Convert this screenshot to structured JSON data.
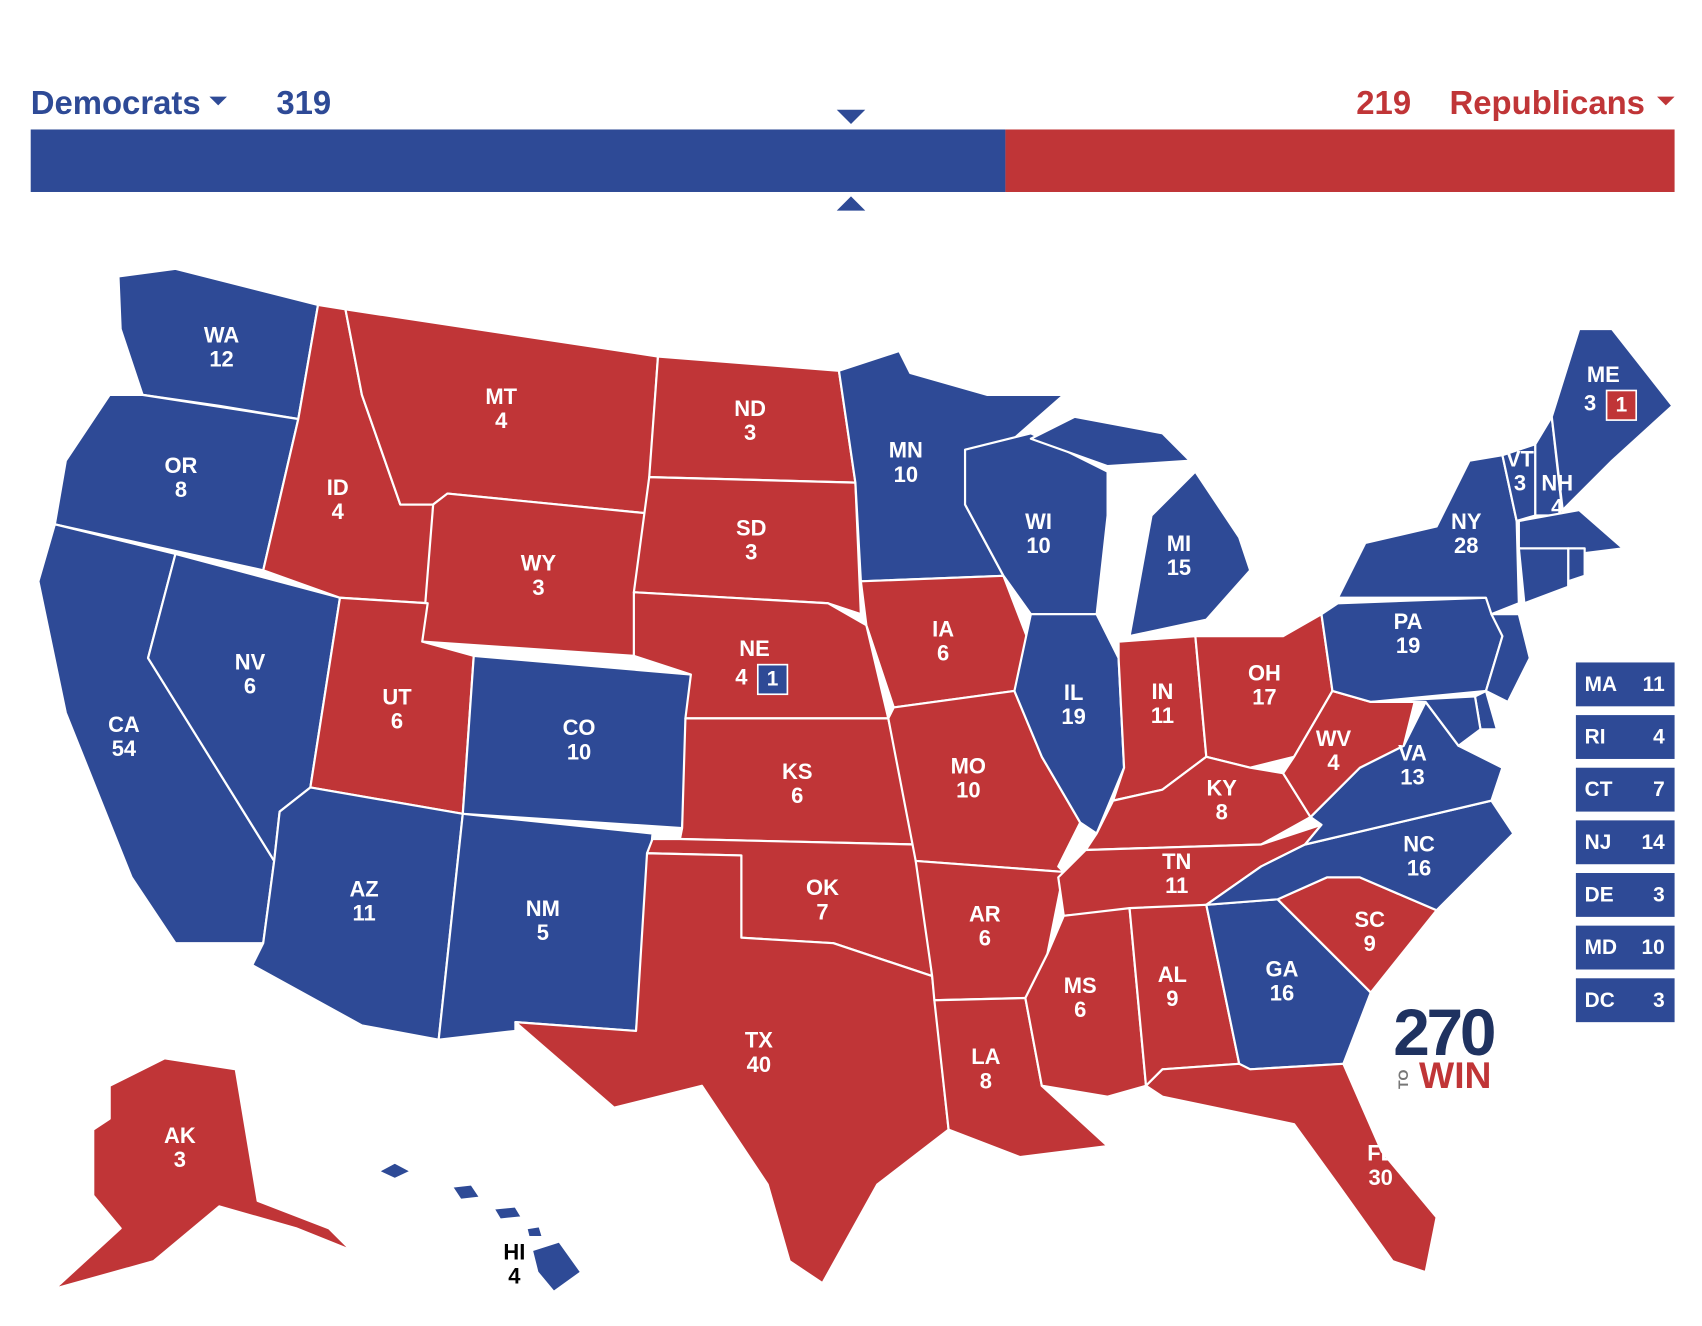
{
  "header": {
    "parties": [
      {
        "name": "Democrats",
        "votes": 319,
        "color": "#2e4a96"
      },
      {
        "name": "Republicans",
        "votes": 219,
        "color": "#c03537"
      }
    ]
  },
  "map": {
    "states": [
      {
        "abbr": "WA",
        "votes": 12,
        "party": 0
      },
      {
        "abbr": "OR",
        "votes": 8,
        "party": 0
      },
      {
        "abbr": "CA",
        "votes": 54,
        "party": 0
      },
      {
        "abbr": "NV",
        "votes": 6,
        "party": 0
      },
      {
        "abbr": "ID",
        "votes": 4,
        "party": 1
      },
      {
        "abbr": "MT",
        "votes": 4,
        "party": 1
      },
      {
        "abbr": "WY",
        "votes": 3,
        "party": 1
      },
      {
        "abbr": "UT",
        "votes": 6,
        "party": 1
      },
      {
        "abbr": "AZ",
        "votes": 11,
        "party": 0
      },
      {
        "abbr": "CO",
        "votes": 10,
        "party": 0
      },
      {
        "abbr": "NM",
        "votes": 5,
        "party": 0
      },
      {
        "abbr": "ND",
        "votes": 3,
        "party": 1
      },
      {
        "abbr": "SD",
        "votes": 3,
        "party": 1
      },
      {
        "abbr": "NE",
        "votes": 4,
        "party": 1,
        "district": {
          "votes": 1,
          "party": 0
        }
      },
      {
        "abbr": "KS",
        "votes": 6,
        "party": 1
      },
      {
        "abbr": "OK",
        "votes": 7,
        "party": 1
      },
      {
        "abbr": "TX",
        "votes": 40,
        "party": 1
      },
      {
        "abbr": "MN",
        "votes": 10,
        "party": 0
      },
      {
        "abbr": "IA",
        "votes": 6,
        "party": 1
      },
      {
        "abbr": "MO",
        "votes": 10,
        "party": 1
      },
      {
        "abbr": "AR",
        "votes": 6,
        "party": 1
      },
      {
        "abbr": "LA",
        "votes": 8,
        "party": 1
      },
      {
        "abbr": "WI",
        "votes": 10,
        "party": 0
      },
      {
        "abbr": "IL",
        "votes": 19,
        "party": 0
      },
      {
        "abbr": "MI",
        "votes": 15,
        "party": 0
      },
      {
        "abbr": "IN",
        "votes": 11,
        "party": 1
      },
      {
        "abbr": "OH",
        "votes": 17,
        "party": 1
      },
      {
        "abbr": "KY",
        "votes": 8,
        "party": 1
      },
      {
        "abbr": "TN",
        "votes": 11,
        "party": 1
      },
      {
        "abbr": "MS",
        "votes": 6,
        "party": 1
      },
      {
        "abbr": "AL",
        "votes": 9,
        "party": 1
      },
      {
        "abbr": "GA",
        "votes": 16,
        "party": 0
      },
      {
        "abbr": "FL",
        "votes": 30,
        "party": 1
      },
      {
        "abbr": "SC",
        "votes": 9,
        "party": 1
      },
      {
        "abbr": "NC",
        "votes": 16,
        "party": 0
      },
      {
        "abbr": "VA",
        "votes": 13,
        "party": 0
      },
      {
        "abbr": "WV",
        "votes": 4,
        "party": 1
      },
      {
        "abbr": "PA",
        "votes": 19,
        "party": 0
      },
      {
        "abbr": "NY",
        "votes": 28,
        "party": 0
      },
      {
        "abbr": "VT",
        "votes": 3,
        "party": 0
      },
      {
        "abbr": "NH",
        "votes": 4,
        "party": 0
      },
      {
        "abbr": "ME",
        "votes": 3,
        "party": 0,
        "district": {
          "votes": 1,
          "party": 1
        }
      },
      {
        "abbr": "AK",
        "votes": 3,
        "party": 1
      },
      {
        "abbr": "HI",
        "votes": 4,
        "party": 0
      }
    ],
    "small_states": [
      {
        "abbr": "MA",
        "votes": 11,
        "party": 0
      },
      {
        "abbr": "RI",
        "votes": 4,
        "party": 0
      },
      {
        "abbr": "CT",
        "votes": 7,
        "party": 0
      },
      {
        "abbr": "NJ",
        "votes": 14,
        "party": 0
      },
      {
        "abbr": "DE",
        "votes": 3,
        "party": 0
      },
      {
        "abbr": "MD",
        "votes": 10,
        "party": 0
      },
      {
        "abbr": "DC",
        "votes": 3,
        "party": 0
      }
    ]
  },
  "logo": {
    "number": "270",
    "to": "TO",
    "win": "WIN"
  }
}
